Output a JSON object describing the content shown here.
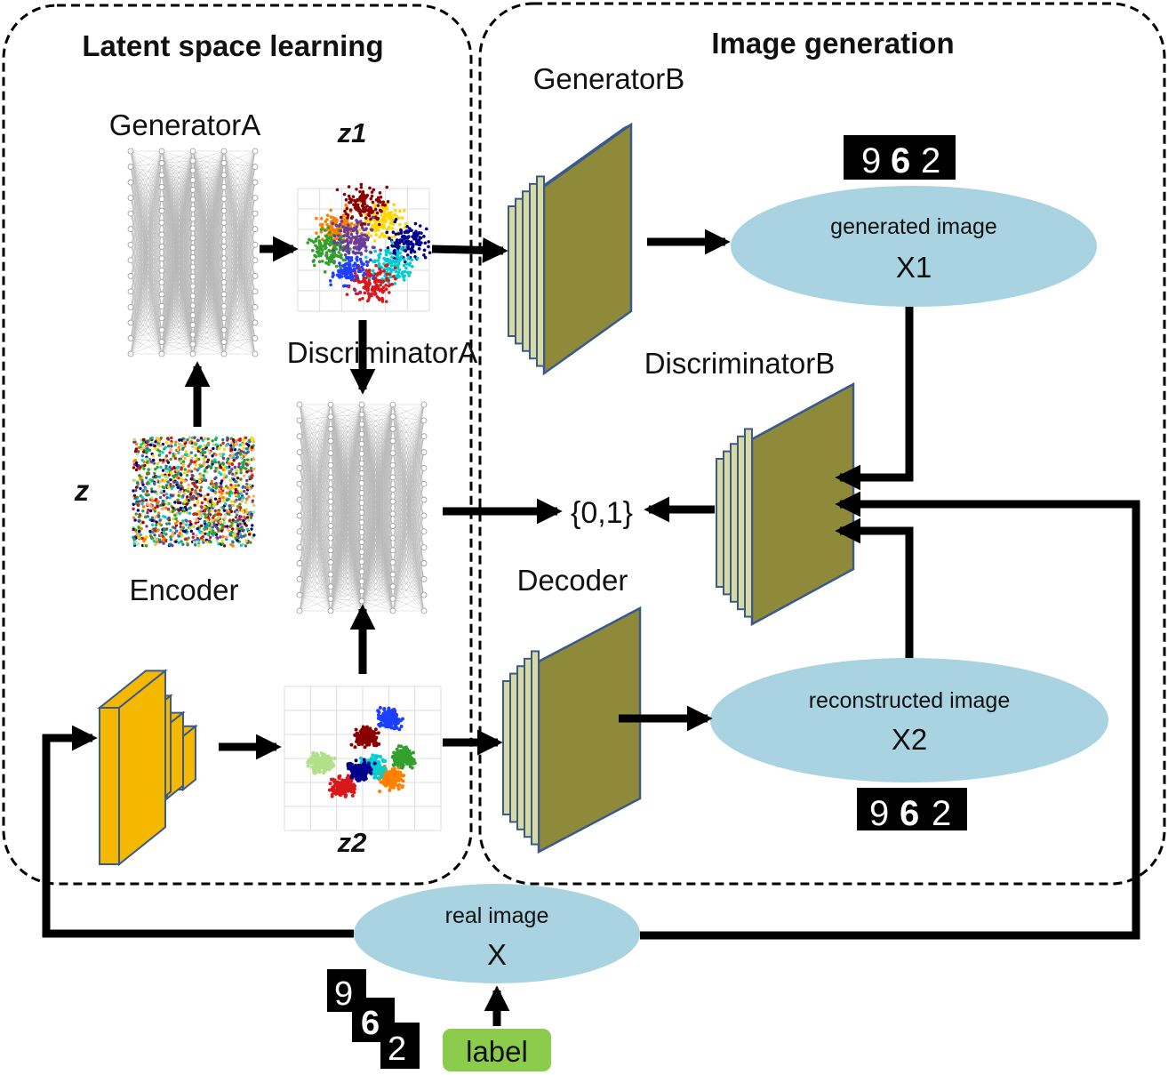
{
  "panels": {
    "left_title": "Latent space learning",
    "right_title": "Image generation"
  },
  "nodes": {
    "generatorA": "GeneratorA",
    "discriminatorA": "DiscriminatorA",
    "encoder": "Encoder",
    "generatorB": "GeneratorB",
    "discriminatorB": "DiscriminatorB",
    "decoder": "Decoder",
    "z": "z",
    "z1": "z1",
    "z2": "z2",
    "output_set": "{0,1}",
    "label": "label"
  },
  "ellipses": {
    "generated": {
      "title": "generated image",
      "symbol": "X1"
    },
    "reconstructed": {
      "title": "reconstructed image",
      "symbol": "X2"
    },
    "real": {
      "title": "real image",
      "symbol": "X"
    }
  },
  "digits": [
    "9",
    "6",
    "2"
  ],
  "colors": {
    "ellipse_fill": "#a9d3e1",
    "encoder_fill": "#f5b800",
    "generator_fill": "#8e8a3a",
    "layer_face": "#d9d9a2",
    "block_edge": "#3a5a8c",
    "label_fill": "#8ccc4c",
    "network_line": "#b8b8b8"
  }
}
